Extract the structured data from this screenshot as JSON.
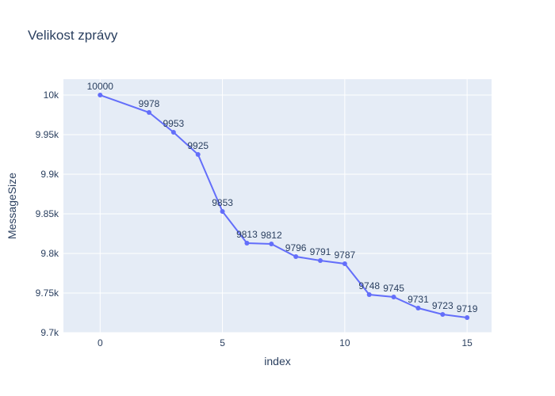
{
  "chart_data": {
    "type": "line",
    "title": "Velikost zprávy",
    "xlabel": "index",
    "ylabel": "MessageSize",
    "x": [
      0,
      2,
      3,
      4,
      5,
      6,
      7,
      8,
      9,
      10,
      11,
      12,
      13,
      14,
      15
    ],
    "values": [
      10000,
      9978,
      9953,
      9925,
      9853,
      9813,
      9812,
      9796,
      9791,
      9787,
      9748,
      9745,
      9731,
      9723,
      9719
    ],
    "data_labels": [
      "10000",
      "9978",
      "9953",
      "9925",
      "9853",
      "9813",
      "9812",
      "9796",
      "9791",
      "9787",
      "9748",
      "9745",
      "9731",
      "9723",
      "9719"
    ],
    "xlim": [
      -1.5,
      16
    ],
    "ylim": [
      9700,
      10020
    ],
    "x_ticks": [
      0,
      5,
      10,
      15
    ],
    "x_tick_labels": [
      "0",
      "5",
      "10",
      "15"
    ],
    "y_ticks": [
      9700,
      9750,
      9800,
      9850,
      9900,
      9950,
      10000
    ],
    "y_tick_labels": [
      "9.7k",
      "9.75k",
      "9.8k",
      "9.85k",
      "9.9k",
      "9.95k",
      "10k"
    ],
    "grid": true,
    "mode": "lines+markers+text",
    "colors": {
      "line": "#636efa",
      "plot_background": "#e5ecf6",
      "grid": "#ffffff",
      "text": "#2a3f5f"
    }
  }
}
